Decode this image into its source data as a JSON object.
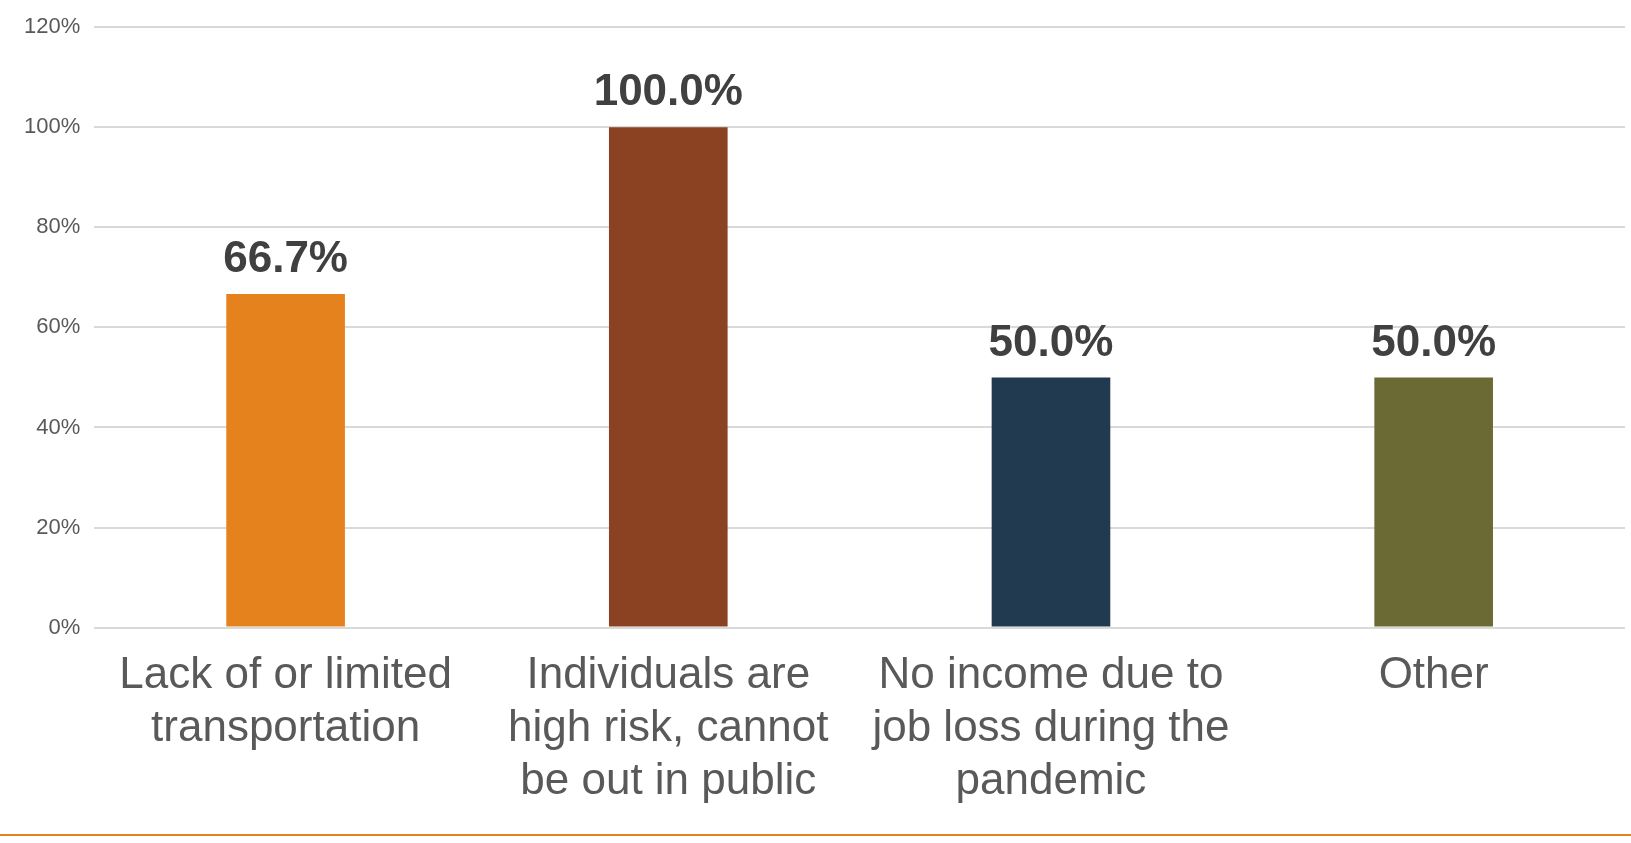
{
  "chart_data": {
    "type": "bar",
    "categories": [
      "Lack of or limited transportation",
      "Individuals are high risk, cannot be out in public",
      "No income due to job loss during the pandemic",
      "Other"
    ],
    "values": [
      66.7,
      100,
      50,
      50
    ],
    "colors": [
      "#e6821e",
      "#8b4222",
      "#213a4f",
      "#6b6934"
    ],
    "value_labels": [
      "66.7%",
      "100.0%",
      "50.0%",
      "50.0%"
    ],
    "ylim": [
      0,
      120
    ],
    "yticks": [
      {
        "value": 0,
        "label": "0%"
      },
      {
        "value": 20,
        "label": "20%"
      },
      {
        "value": 40,
        "label": "40%"
      },
      {
        "value": 60,
        "label": "60%"
      },
      {
        "value": 80,
        "label": "80%"
      },
      {
        "value": 100,
        "label": "100%"
      },
      {
        "value": 120,
        "label": "120%"
      }
    ],
    "grid": "y",
    "legend": false
  }
}
